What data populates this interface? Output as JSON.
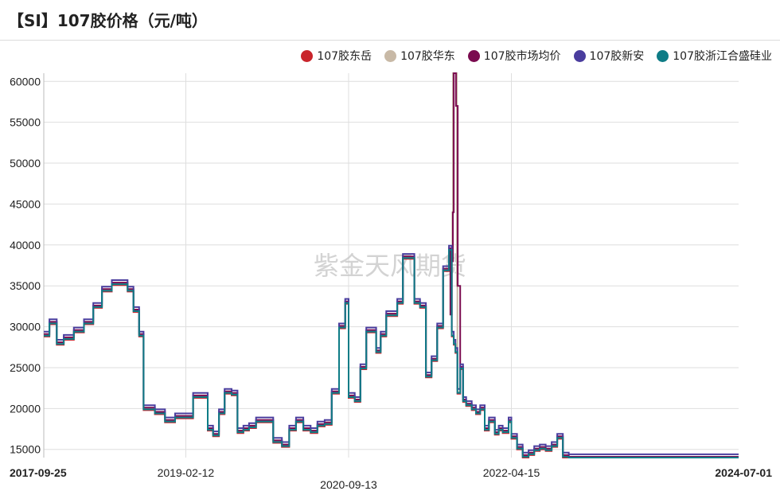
{
  "title": "【SI】107胶价格（元/吨）",
  "watermark": "紫金天风期货",
  "colors": {
    "dongyue": "#c9252c",
    "huadong": "#c8b9a6",
    "market_avg": "#7a0b4f",
    "xinan": "#4a3d9e",
    "zhejiang_hesheng": "#0e7c86",
    "grid": "#dedede"
  },
  "chart_data": {
    "type": "line",
    "title": "【SI】107胶价格（元/吨）",
    "xlabel": "",
    "ylabel": "",
    "x_tick_labels": [
      "2017-09-25",
      "2019-02-12",
      "2020-09-13",
      "2022-04-15",
      "2024-07-01"
    ],
    "x_tick_dates": [
      "2017-09-25",
      "2019-02-12",
      "2020-09-13",
      "2022-04-15",
      "2024-07-01"
    ],
    "xlim": [
      "2017-09-25",
      "2024-07-01"
    ],
    "y_ticks": [
      15000,
      20000,
      25000,
      30000,
      35000,
      40000,
      45000,
      50000,
      55000,
      60000
    ],
    "ylim": [
      14000,
      61000
    ],
    "grid": true,
    "legend_position": "top-right",
    "base_dates": [
      "2017-09-25",
      "2017-10-15",
      "2017-11-10",
      "2017-12-05",
      "2018-01-10",
      "2018-02-15",
      "2018-03-20",
      "2018-04-20",
      "2018-05-25",
      "2018-06-25",
      "2018-07-20",
      "2018-08-10",
      "2018-08-30",
      "2018-09-15",
      "2018-10-05",
      "2018-10-25",
      "2018-11-30",
      "2019-01-05",
      "2019-02-12",
      "2019-03-10",
      "2019-04-05",
      "2019-05-01",
      "2019-05-20",
      "2019-06-10",
      "2019-06-30",
      "2019-07-25",
      "2019-08-15",
      "2019-09-05",
      "2019-09-25",
      "2019-10-20",
      "2019-11-20",
      "2019-12-20",
      "2020-01-20",
      "2020-02-15",
      "2020-03-10",
      "2020-04-05",
      "2020-05-01",
      "2020-05-25",
      "2020-06-20",
      "2020-07-15",
      "2020-08-10",
      "2020-09-01",
      "2020-09-13",
      "2020-10-05",
      "2020-10-25",
      "2020-11-15",
      "2020-12-05",
      "2020-12-20",
      "2021-01-05",
      "2021-01-25",
      "2021-02-15",
      "2021-03-05",
      "2021-03-25",
      "2021-04-15",
      "2021-05-05",
      "2021-05-25",
      "2021-06-15",
      "2021-07-05",
      "2021-07-25",
      "2021-08-15",
      "2021-09-05",
      "2021-09-15",
      "2021-09-22",
      "2021-09-28",
      "2021-10-05",
      "2021-10-15",
      "2021-10-25",
      "2021-11-05",
      "2021-11-25",
      "2021-12-10",
      "2021-12-25",
      "2022-01-10",
      "2022-01-25",
      "2022-02-15",
      "2022-03-01",
      "2022-03-15",
      "2022-03-25",
      "2022-04-05",
      "2022-04-15",
      "2022-05-05",
      "2022-05-25",
      "2022-06-15",
      "2022-07-05",
      "2022-07-25",
      "2022-08-15",
      "2022-09-05",
      "2022-09-25",
      "2022-10-15",
      "2022-11-05",
      "2022-11-25",
      "2022-12-15",
      "2023-01-10",
      "2023-02-05",
      "2023-03-01",
      "2023-03-25",
      "2023-04-20",
      "2023-05-15",
      "2023-06-10",
      "2023-07-05",
      "2023-07-30",
      "2023-08-25",
      "2023-09-20",
      "2023-10-15",
      "2023-11-10",
      "2023-12-05",
      "2024-01-01",
      "2024-01-25",
      "2024-02-20",
      "2024-03-15",
      "2024-04-10",
      "2024-05-05",
      "2024-05-30",
      "2024-06-20",
      "2024-07-01"
    ],
    "base_values": [
      29000,
      30500,
      28000,
      28600,
      29500,
      30500,
      32500,
      34500,
      35300,
      35300,
      34500,
      32000,
      29000,
      20000,
      20000,
      19500,
      18500,
      19000,
      19000,
      21500,
      21500,
      17500,
      16800,
      19500,
      22000,
      21800,
      17200,
      17500,
      17800,
      18500,
      18500,
      16000,
      15500,
      17500,
      18500,
      17500,
      17200,
      18000,
      18200,
      22000,
      30000,
      33000,
      21500,
      21000,
      25000,
      29500,
      29500,
      27000,
      29000,
      31500,
      31500,
      33000,
      38500,
      38500,
      33000,
      32500,
      24000,
      26000,
      30000,
      37000,
      39500,
      29000,
      28000,
      27000,
      22000,
      25000,
      21000,
      20500,
      20000,
      19500,
      20000,
      17500,
      18500,
      17000,
      17500,
      17200,
      17200,
      18500,
      16500,
      15200,
      14200,
      14500,
      15000,
      15200,
      15000,
      15500,
      16500,
      14200,
      14000,
      14000,
      14000,
      14000,
      14000,
      14000,
      14000,
      14000,
      14000,
      14000,
      14000,
      14000,
      14000,
      14000,
      14000,
      14000,
      14000,
      14000,
      14000,
      14000,
      14000,
      14000,
      14000,
      14000,
      14000,
      14000,
      14000
    ],
    "series": [
      {
        "name": "107胶东岳",
        "color_key": "dongyue",
        "offset": -200
      },
      {
        "name": "107胶华东",
        "color_key": "huadong",
        "offset": 0,
        "spike": [
          [
            "2021-09-10",
            31500
          ],
          [
            "2021-09-15",
            38000
          ],
          [
            "2021-09-17",
            44000
          ],
          [
            "2021-09-19",
            61000
          ],
          [
            "2021-09-28",
            61000
          ],
          [
            "2021-10-03",
            35000
          ]
        ]
      },
      {
        "name": "107胶市场均价",
        "color_key": "market_avg",
        "offset": 100,
        "spike": [
          [
            "2021-09-10",
            31500
          ],
          [
            "2021-09-15",
            38000
          ],
          [
            "2021-09-19",
            44000
          ],
          [
            "2021-09-22",
            61000
          ],
          [
            "2021-09-30",
            57000
          ],
          [
            "2021-10-06",
            35000
          ]
        ]
      },
      {
        "name": "107胶新安",
        "color_key": "xinan",
        "offset": 400
      },
      {
        "name": "107胶浙江合盛硅业",
        "color_key": "zhejiang_hesheng",
        "offset": -100
      }
    ]
  }
}
